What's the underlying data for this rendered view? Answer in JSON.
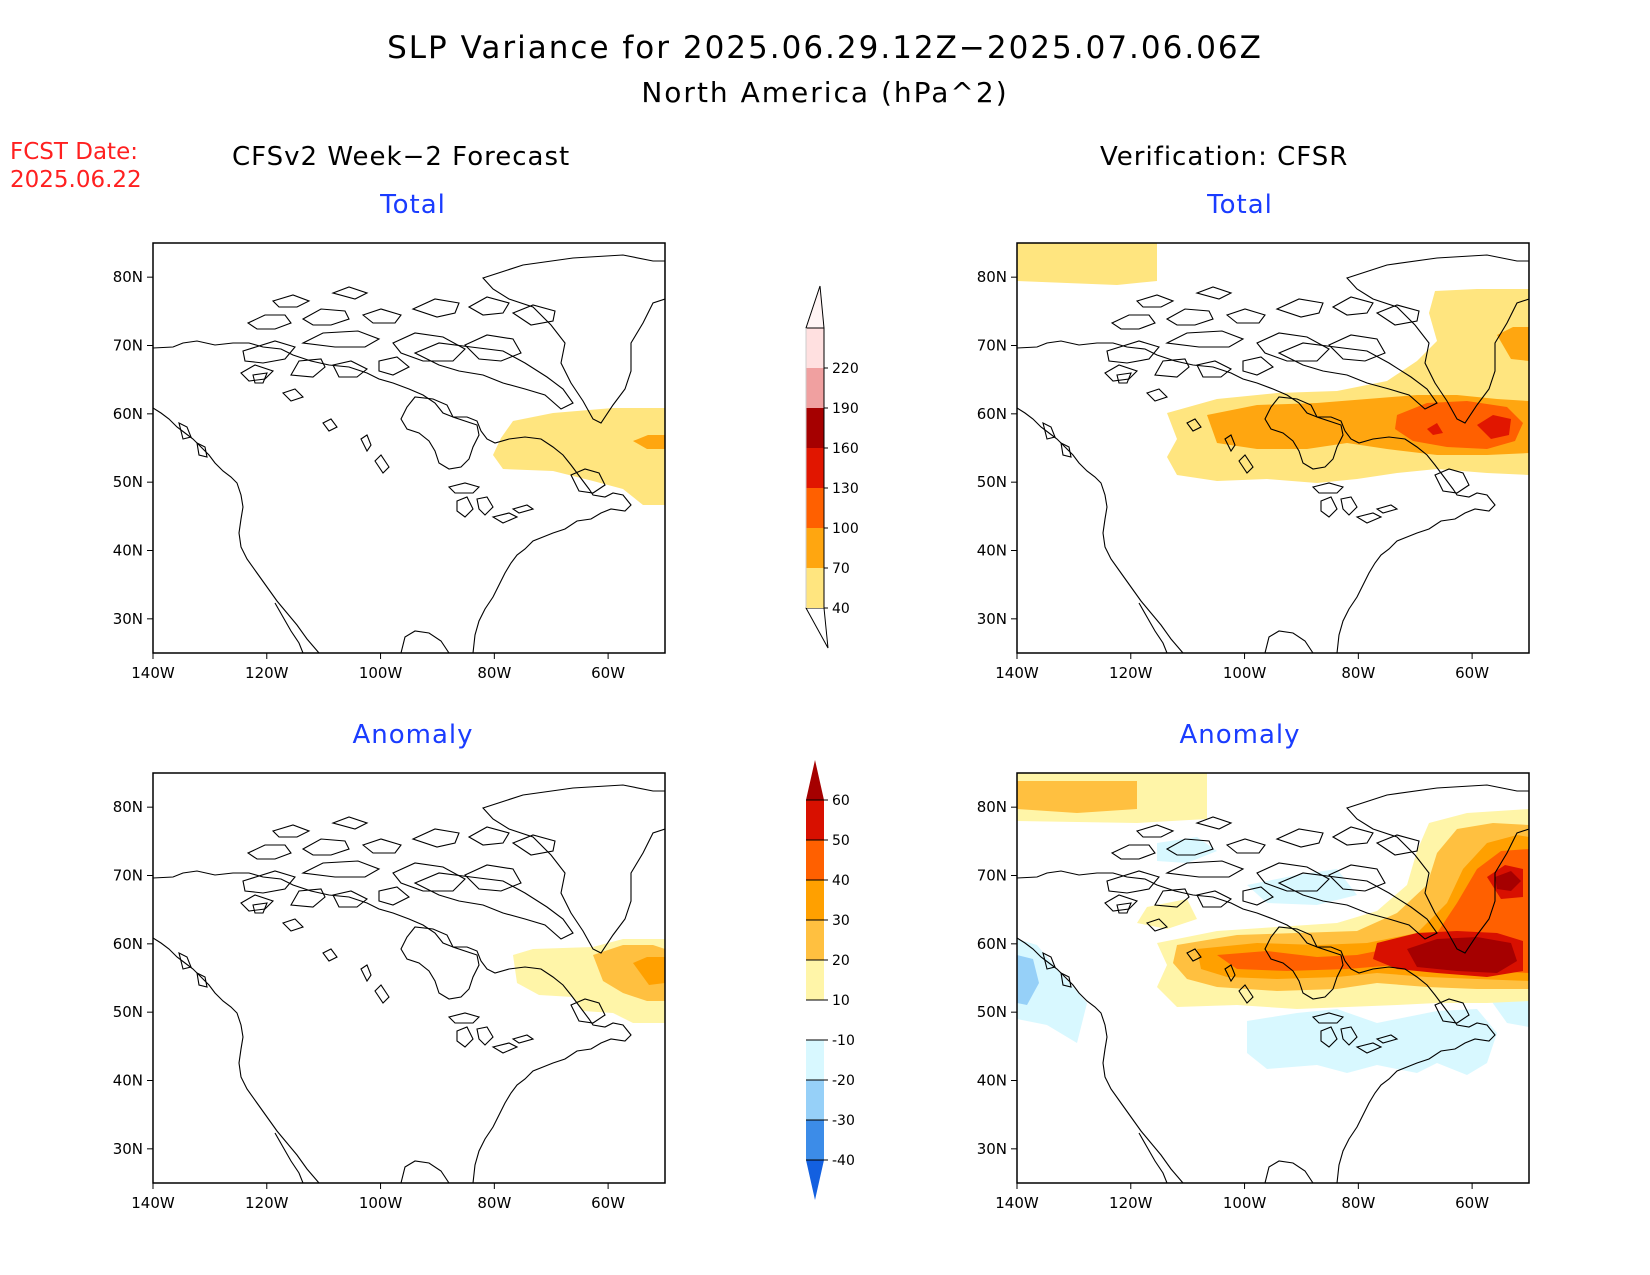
{
  "title": "SLP Variance for 2025.06.29.12Z−2025.07.06.06Z",
  "subtitle": "North America (hPa^2)",
  "forecast_date": {
    "label": "FCST Date:",
    "value": "2025.06.22"
  },
  "columns": {
    "left": "CFSv2 Week−2 Forecast",
    "right": "Verification: CFSR"
  },
  "panels": {
    "total_title": "Total",
    "anomaly_title": "Anomaly",
    "lat_labels": [
      "80N",
      "70N",
      "60N",
      "50N",
      "40N",
      "30N"
    ],
    "lon_labels": [
      "140W",
      "120W",
      "100W",
      "80W",
      "60W"
    ]
  },
  "chart_data": {
    "type": "contour_map",
    "region": "North America",
    "units": "hPa^2",
    "lon_range": [
      -140,
      -50
    ],
    "lat_range": [
      25,
      85
    ],
    "total_scale": {
      "levels": [
        40,
        70,
        100,
        130,
        160,
        190,
        220
      ],
      "level_labels": [
        "40",
        "70",
        "100",
        "130",
        "160",
        "190",
        "220"
      ],
      "colors": [
        "#ffe57f",
        "#ffa610",
        "#ff6000",
        "#e11600",
        "#a50000",
        "#f0a0a0",
        "#ffe0e0"
      ]
    },
    "anomaly_scale": {
      "levels": [
        -40,
        -30,
        -20,
        -10,
        10,
        20,
        30,
        40,
        50,
        60
      ],
      "level_labels": [
        "-40",
        "-30",
        "-20",
        "-10",
        "10",
        "20",
        "30",
        "40",
        "50",
        "60"
      ],
      "colors": [
        "#1360e0",
        "#3c8ce8",
        "#96d0f8",
        "#d8f8ff",
        "#ffffff",
        "#fff5a8",
        "#ffc040",
        "#ffa000",
        "#ff6000",
        "#d81000",
        "#a50000"
      ]
    }
  }
}
